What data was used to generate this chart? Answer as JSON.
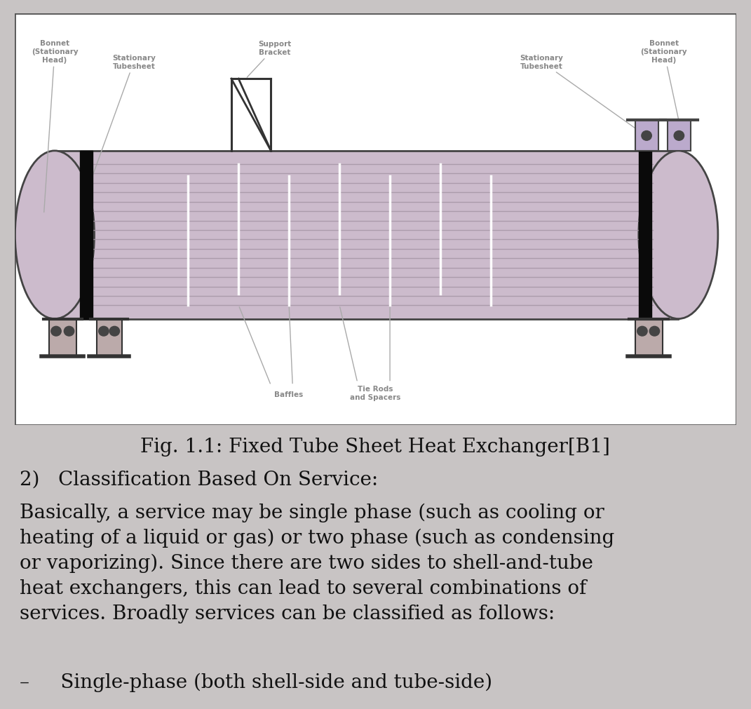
{
  "fig_caption": "Fig. 1.1: Fixed Tube Sheet Heat Exchanger[B1]",
  "caption_fontsize": 20,
  "caption_family": "DejaVu Serif",
  "heading": "2)   Classification Based On Service:",
  "heading_fontsize": 20,
  "para1": "Basically, a service may be single phase (such as cooling or\nheating of a liquid or gas) or two phase (such as condensing\nor vaporizing). Since there are two sides to shell-and-tube\nheat exchangers, this can lead to several combinations of\nservices. Broadly services can be classified as follows:",
  "para1_fontsize": 20,
  "bullet1": "–     Single-phase (both shell-side and tube-side)",
  "bullet1_fontsize": 20,
  "bg_color": "#c8c4c4",
  "diagram_bg": "#f0eeee",
  "shell_fill": "#ccbbcc",
  "shell_edge": "#444444",
  "tube_line": "#a898a8",
  "baffle_color": "#e8e8e8",
  "ts_color": "#111111",
  "label_color": "#888888",
  "label_fs": 7.5,
  "text_color": "#111111"
}
